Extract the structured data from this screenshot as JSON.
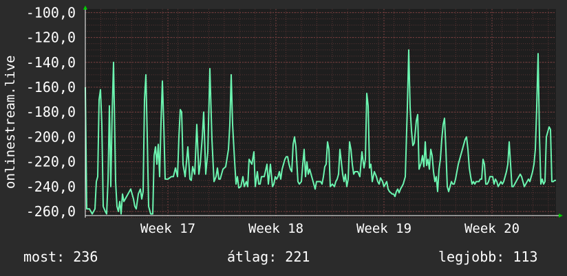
{
  "chart_data": {
    "type": "line",
    "ylabel": "onlinestream.live",
    "ylim": [
      -265,
      -97
    ],
    "yticks": [
      -260,
      -240,
      -220,
      -200,
      -180,
      -160,
      -140,
      -120,
      -100
    ],
    "ytick_labels": [
      "-260,0",
      "-240,0",
      "-220,0",
      "-200,0",
      "-180,0",
      "-160,0",
      "-140,0",
      "-120,0",
      "-100,0"
    ],
    "xlim": [
      0,
      684
    ],
    "xticks": [
      {
        "x": 120,
        "label": "Week 17"
      },
      {
        "x": 277,
        "label": "Week 18"
      },
      {
        "x": 434,
        "label": "Week 19"
      },
      {
        "x": 591,
        "label": "Week 20"
      }
    ],
    "grid": true,
    "colors": {
      "background": "#2b2b2b",
      "plot": "#1e1e1e",
      "line": "#6cf5b0",
      "grid_minor": "#5a3434",
      "grid_major": "#7a4040",
      "arrow": "#00cc00"
    },
    "series": [
      {
        "values": [
          [
            0,
            -160
          ],
          [
            2,
            -258
          ],
          [
            6,
            -258
          ],
          [
            10,
            -262
          ],
          [
            14,
            -258
          ],
          [
            16,
            -236
          ],
          [
            18,
            -232
          ],
          [
            20,
            -170
          ],
          [
            22,
            -162
          ],
          [
            24,
            -190
          ],
          [
            26,
            -256
          ],
          [
            29,
            -260
          ],
          [
            31,
            -262
          ],
          [
            33,
            -235
          ],
          [
            35,
            -175
          ],
          [
            37,
            -240
          ],
          [
            39,
            -180
          ],
          [
            41,
            -140
          ],
          [
            44,
            -236
          ],
          [
            46,
            -256
          ],
          [
            48,
            -260
          ],
          [
            50,
            -252
          ],
          [
            52,
            -262
          ],
          [
            54,
            -246
          ],
          [
            56,
            -252
          ],
          [
            58,
            -250
          ],
          [
            62,
            -246
          ],
          [
            64,
            -244
          ],
          [
            66,
            -242
          ],
          [
            70,
            -250
          ],
          [
            72,
            -256
          ],
          [
            74,
            -258
          ],
          [
            77,
            -246
          ],
          [
            80,
            -242
          ],
          [
            82,
            -250
          ],
          [
            84,
            -244
          ],
          [
            86,
            -170
          ],
          [
            88,
            -150
          ],
          [
            90,
            -200
          ],
          [
            92,
            -256
          ],
          [
            95,
            -262
          ],
          [
            98,
            -262
          ],
          [
            100,
            -215
          ],
          [
            102,
            -208
          ],
          [
            104,
            -222
          ],
          [
            106,
            -206
          ],
          [
            108,
            -232
          ],
          [
            110,
            -188
          ],
          [
            112,
            -155
          ],
          [
            114,
            -190
          ],
          [
            116,
            -234
          ],
          [
            120,
            -234
          ],
          [
            125,
            -232
          ],
          [
            128,
            -232
          ],
          [
            131,
            -225
          ],
          [
            134,
            -232
          ],
          [
            136,
            -200
          ],
          [
            138,
            -178
          ],
          [
            140,
            -180
          ],
          [
            142,
            -222
          ],
          [
            145,
            -232
          ],
          [
            149,
            -208
          ],
          [
            152,
            -234
          ],
          [
            154,
            -235
          ],
          [
            156,
            -224
          ],
          [
            159,
            -230
          ],
          [
            162,
            -190
          ],
          [
            165,
            -230
          ],
          [
            167,
            -222
          ],
          [
            170,
            -200
          ],
          [
            172,
            -180
          ],
          [
            175,
            -230
          ],
          [
            178,
            -212
          ],
          [
            181,
            -145
          ],
          [
            184,
            -202
          ],
          [
            187,
            -236
          ],
          [
            190,
            -232
          ],
          [
            192,
            -225
          ],
          [
            194,
            -234
          ],
          [
            196,
            -234
          ],
          [
            200,
            -226
          ],
          [
            204,
            -224
          ],
          [
            208,
            -210
          ],
          [
            210,
            -190
          ],
          [
            212,
            -150
          ],
          [
            214,
            -190
          ],
          [
            217,
            -220
          ],
          [
            219,
            -238
          ],
          [
            221,
            -232
          ],
          [
            223,
            -241
          ],
          [
            226,
            -240
          ],
          [
            229,
            -232
          ],
          [
            231,
            -240
          ],
          [
            234,
            -236
          ],
          [
            236,
            -240
          ],
          [
            238,
            -218
          ],
          [
            242,
            -222
          ],
          [
            245,
            -212
          ],
          [
            247,
            -240
          ],
          [
            250,
            -228
          ],
          [
            252,
            -238
          ],
          [
            254,
            -238
          ],
          [
            256,
            -232
          ],
          [
            260,
            -232
          ],
          [
            264,
            -222
          ],
          [
            266,
            -238
          ],
          [
            269,
            -222
          ],
          [
            272,
            -240
          ],
          [
            274,
            -238
          ],
          [
            276,
            -232
          ],
          [
            278,
            -234
          ],
          [
            280,
            -232
          ],
          [
            282,
            -228
          ],
          [
            284,
            -234
          ],
          [
            286,
            -226
          ],
          [
            288,
            -222
          ],
          [
            290,
            -218
          ],
          [
            292,
            -216
          ],
          [
            294,
            -216
          ],
          [
            296,
            -222
          ],
          [
            298,
            -226
          ],
          [
            300,
            -228
          ],
          [
            302,
            -206
          ],
          [
            304,
            -200
          ],
          [
            306,
            -208
          ],
          [
            309,
            -236
          ],
          [
            311,
            -238
          ],
          [
            314,
            -236
          ],
          [
            316,
            -222
          ],
          [
            318,
            -210
          ],
          [
            320,
            -232
          ],
          [
            322,
            -220
          ],
          [
            324,
            -230
          ],
          [
            326,
            -226
          ],
          [
            328,
            -230
          ],
          [
            330,
            -234
          ],
          [
            332,
            -238
          ],
          [
            334,
            -242
          ],
          [
            336,
            -236
          ],
          [
            338,
            -236
          ],
          [
            340,
            -236
          ],
          [
            342,
            -236
          ],
          [
            344,
            -238
          ],
          [
            346,
            -232
          ],
          [
            348,
            -224
          ],
          [
            350,
            -222
          ],
          [
            352,
            -204
          ],
          [
            354,
            -210
          ],
          [
            356,
            -240
          ],
          [
            359,
            -238
          ],
          [
            362,
            -240
          ],
          [
            364,
            -236
          ],
          [
            366,
            -234
          ],
          [
            368,
            -230
          ],
          [
            370,
            -210
          ],
          [
            372,
            -220
          ],
          [
            374,
            -230
          ],
          [
            376,
            -236
          ],
          [
            378,
            -230
          ],
          [
            380,
            -240
          ],
          [
            382,
            -234
          ],
          [
            384,
            -204
          ],
          [
            386,
            -210
          ],
          [
            388,
            -222
          ],
          [
            390,
            -230
          ],
          [
            392,
            -228
          ],
          [
            396,
            -228
          ],
          [
            399,
            -232
          ],
          [
            402,
            -212
          ],
          [
            405,
            -225
          ],
          [
            407,
            -218
          ],
          [
            409,
            -165
          ],
          [
            411,
            -175
          ],
          [
            413,
            -225
          ],
          [
            415,
            -222
          ],
          [
            417,
            -236
          ],
          [
            420,
            -228
          ],
          [
            423,
            -232
          ],
          [
            425,
            -236
          ],
          [
            427,
            -238
          ],
          [
            429,
            -233
          ],
          [
            432,
            -236
          ],
          [
            434,
            -240
          ],
          [
            436,
            -238
          ],
          [
            438,
            -236
          ],
          [
            440,
            -242
          ],
          [
            442,
            -244
          ],
          [
            444,
            -245
          ],
          [
            446,
            -246
          ],
          [
            448,
            -246
          ],
          [
            450,
            -248
          ],
          [
            452,
            -244
          ],
          [
            454,
            -242
          ],
          [
            456,
            -245
          ],
          [
            458,
            -242
          ],
          [
            462,
            -238
          ],
          [
            465,
            -232
          ],
          [
            468,
            -176
          ],
          [
            470,
            -130
          ],
          [
            472,
            -176
          ],
          [
            474,
            -195
          ],
          [
            476,
            -207
          ],
          [
            478,
            -205
          ],
          [
            481,
            -187
          ],
          [
            483,
            -182
          ],
          [
            485,
            -226
          ],
          [
            488,
            -221
          ],
          [
            490,
            -215
          ],
          [
            492,
            -224
          ],
          [
            494,
            -204
          ],
          [
            496,
            -223
          ],
          [
            498,
            -218
          ],
          [
            500,
            -226
          ],
          [
            502,
            -210
          ],
          [
            504,
            -215
          ],
          [
            506,
            -228
          ],
          [
            508,
            -236
          ],
          [
            510,
            -232
          ],
          [
            512,
            -244
          ],
          [
            514,
            -226
          ],
          [
            516,
            -218
          ],
          [
            518,
            -202
          ],
          [
            520,
            -190
          ],
          [
            522,
            -185
          ],
          [
            524,
            -210
          ],
          [
            526,
            -240
          ],
          [
            528,
            -244
          ],
          [
            530,
            -240
          ],
          [
            532,
            -236
          ],
          [
            534,
            -238
          ],
          [
            536,
            -238
          ],
          [
            538,
            -234
          ],
          [
            540,
            -228
          ],
          [
            542,
            -222
          ],
          [
            544,
            -218
          ],
          [
            546,
            -214
          ],
          [
            548,
            -210
          ],
          [
            550,
            -206
          ],
          [
            552,
            -202
          ],
          [
            554,
            -200
          ],
          [
            556,
            -210
          ],
          [
            558,
            -225
          ],
          [
            560,
            -232
          ],
          [
            562,
            -238
          ],
          [
            564,
            -236
          ],
          [
            566,
            -238
          ],
          [
            568,
            -236
          ],
          [
            570,
            -236
          ],
          [
            572,
            -236
          ],
          [
            574,
            -234
          ],
          [
            576,
            -234
          ],
          [
            578,
            -218
          ],
          [
            580,
            -222
          ],
          [
            582,
            -238
          ],
          [
            584,
            -238
          ],
          [
            586,
            -236
          ],
          [
            588,
            -232
          ],
          [
            590,
            -232
          ],
          [
            592,
            -232
          ],
          [
            594,
            -238
          ],
          [
            596,
            -234
          ],
          [
            598,
            -236
          ],
          [
            600,
            -240
          ],
          [
            602,
            -238
          ],
          [
            604,
            -236
          ],
          [
            606,
            -238
          ],
          [
            608,
            -236
          ],
          [
            610,
            -232
          ],
          [
            612,
            -228
          ],
          [
            614,
            -222
          ],
          [
            616,
            -204
          ],
          [
            618,
            -222
          ],
          [
            620,
            -240
          ],
          [
            622,
            -240
          ],
          [
            624,
            -238
          ],
          [
            626,
            -236
          ],
          [
            628,
            -234
          ],
          [
            630,
            -232
          ],
          [
            632,
            -230
          ],
          [
            634,
            -232
          ],
          [
            636,
            -236
          ],
          [
            638,
            -240
          ],
          [
            640,
            -238
          ],
          [
            642,
            -236
          ],
          [
            644,
            -234
          ],
          [
            646,
            -236
          ],
          [
            648,
            -232
          ],
          [
            650,
            -228
          ],
          [
            652,
            -222
          ],
          [
            654,
            -210
          ],
          [
            656,
            -176
          ],
          [
            658,
            -133
          ],
          [
            660,
            -200
          ],
          [
            662,
            -238
          ],
          [
            664,
            -234
          ],
          [
            666,
            -238
          ],
          [
            668,
            -236
          ],
          [
            670,
            -200
          ],
          [
            672,
            -196
          ],
          [
            674,
            -192
          ],
          [
            676,
            -194
          ],
          [
            678,
            -236
          ],
          [
            680,
            -236
          ],
          [
            682,
            -235
          ],
          [
            684,
            -235
          ]
        ]
      }
    ]
  },
  "stats": {
    "now_label": "most:",
    "now_value": "236",
    "avg_label": "átlag:",
    "avg_value": "221",
    "best_label": "legjobb:",
    "best_value": "113"
  }
}
